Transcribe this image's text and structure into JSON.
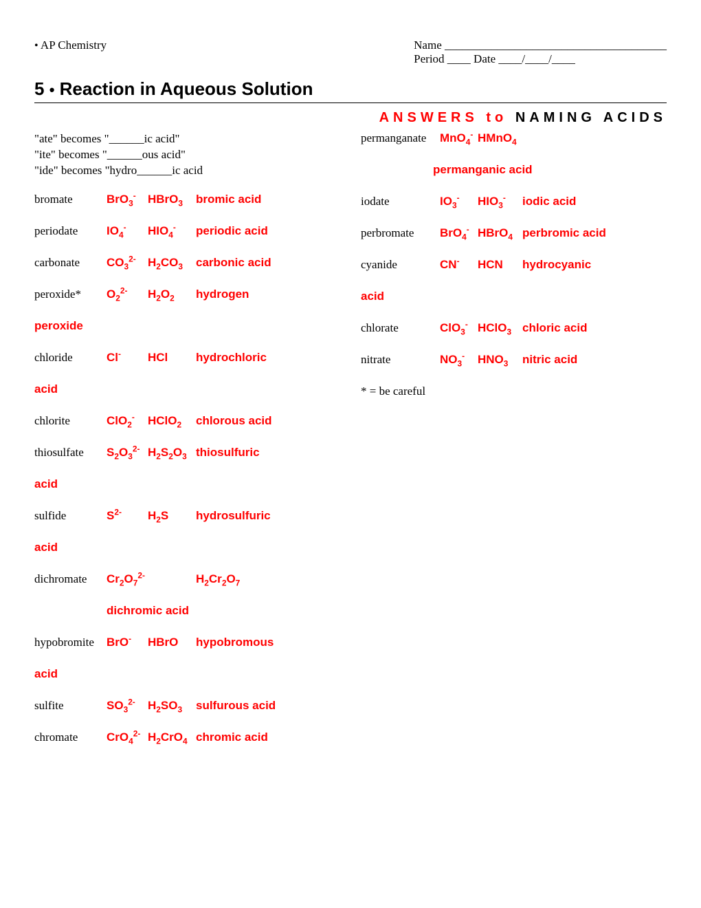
{
  "header": {
    "course": "AP Chemistry",
    "name_label": "Name ______________________________________",
    "period_label": "Period ____  Date ____/____/____"
  },
  "title": {
    "number": "5",
    "text": "Reaction in Aqueous Solution"
  },
  "answers_label_red": "ANSWERS to",
  "answers_label_black": "NAMING ACIDS",
  "rules": [
    "\"ate\" becomes \"______ic acid\"",
    "\"ite\" becomes \"______ous acid\"",
    "\"ide\" becomes \"hydro______ic acid"
  ],
  "col1": [
    {
      "ion": "bromate",
      "f1": "BrO<sub>3</sub><sup>-</sup>",
      "f2": "HBrO<sub>3</sub>",
      "acid": "bromic acid",
      "overflow": null,
      "indent": false
    },
    {
      "ion": "periodate",
      "f1": "IO<sub>4</sub><sup>-</sup>",
      "f2": "HIO<sub>4</sub><sup>-</sup>",
      "acid": "periodic acid",
      "overflow": null,
      "indent": false
    },
    {
      "ion": "carbonate",
      "f1": "CO<sub>3</sub><sup>2-</sup>",
      "f2": "H<sub>2</sub>CO<sub>3</sub>",
      "acid": "carbonic acid",
      "overflow": null,
      "indent": false
    },
    {
      "ion": "peroxide*",
      "f1": "O<sub>2</sub><sup>2-</sup>",
      "f2": "H<sub>2</sub>O<sub>2</sub>",
      "acid": "hydrogen",
      "overflow": "peroxide",
      "indent": false
    },
    {
      "ion": "chloride",
      "f1": "Cl<sup>-</sup>",
      "f2": "HCl",
      "acid": "hydrochloric",
      "overflow": "acid",
      "indent": false
    },
    {
      "ion": "chlorite",
      "f1": "ClO<sub>2</sub><sup>-</sup>",
      "f2": "HClO<sub>2</sub>",
      "acid": "chlorous acid",
      "overflow": null,
      "indent": false
    },
    {
      "ion": "thiosulfate",
      "f1": "S<sub>2</sub>O<sub>3</sub><sup>2-</sup>",
      "f2": "H<sub>2</sub>S<sub>2</sub>O<sub>3</sub>",
      "acid": "thiosulfuric",
      "overflow": "acid",
      "indent": false
    },
    {
      "ion": "sulfide",
      "f1": "S<sup>2-</sup>",
      "f2": "H<sub>2</sub>S",
      "acid": "hydrosulfuric",
      "overflow": "acid",
      "indent": false
    },
    {
      "ion": "dichromate",
      "f1": "Cr<sub>2</sub>O<sub>7</sub><sup>2-</sup>",
      "f2": "",
      "acid": "H<sub>2</sub>Cr<sub>2</sub>O<sub>7</sub>",
      "overflow": "dichromic acid",
      "indent": true
    },
    {
      "ion": "hypobromite",
      "f1": "BrO<sup>-</sup>",
      "f2": "HBrO",
      "acid": "hypobromous",
      "overflow": "acid",
      "indent": false
    },
    {
      "ion": "sulfite",
      "f1": "SO<sub>3</sub><sup>2-</sup>",
      "f2": "H<sub>2</sub>SO<sub>3</sub>",
      "acid": "sulfurous acid",
      "overflow": null,
      "indent": false
    },
    {
      "ion": "chromate",
      "f1": "CrO<sub>4</sub><sup>2-</sup>",
      "f2": "H<sub>2</sub>CrO<sub>4</sub>",
      "acid": "chromic acid",
      "overflow": null,
      "indent": false
    }
  ],
  "col2": [
    {
      "ion": "permanganate",
      "f1": "MnO<sub>4</sub><sup>-</sup>",
      "f2": "HMnO<sub>4</sub>",
      "acid": "",
      "overflow": "permanganic acid",
      "indent": true
    },
    {
      "ion": "iodate",
      "f1": "IO<sub>3</sub><sup>-</sup>",
      "f2": "HIO<sub>3</sub><sup>-</sup>",
      "acid": "iodic acid",
      "overflow": null,
      "indent": false
    },
    {
      "ion": "perbromate",
      "f1": "BrO<sub>4</sub><sup>-</sup>",
      "f2": "HBrO<sub>4</sub>",
      "acid": "perbromic acid",
      "overflow": null,
      "indent": false
    },
    {
      "ion": "cyanide",
      "f1": "CN<sup>-</sup>",
      "f2": "HCN",
      "acid": "hydrocyanic",
      "overflow": "acid",
      "indent": false
    },
    {
      "ion": "chlorate",
      "f1": "ClO<sub>3</sub><sup>-</sup>",
      "f2": "HClO<sub>3</sub>",
      "acid": "chloric acid",
      "overflow": null,
      "indent": false
    },
    {
      "ion": "nitrate",
      "f1": "NO<sub>3</sub><sup>-</sup>",
      "f2": "HNO<sub>3</sub>",
      "acid": "nitric acid",
      "overflow": null,
      "indent": false
    }
  ],
  "note": "* = be careful",
  "colors": {
    "answer_red": "#ff0000",
    "text_black": "#000000",
    "background": "#ffffff"
  }
}
